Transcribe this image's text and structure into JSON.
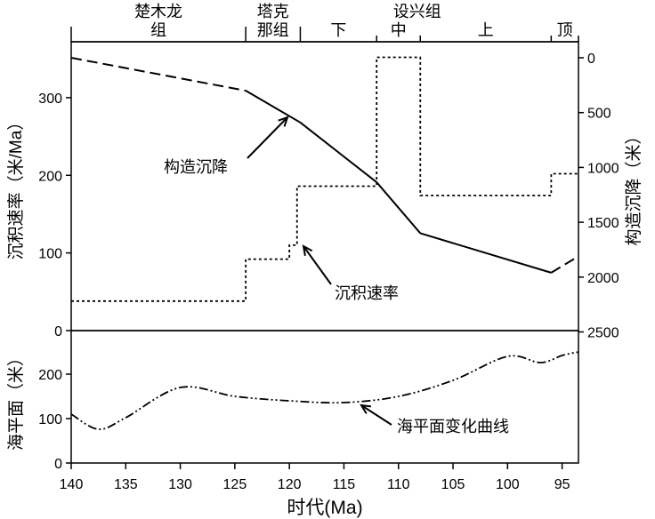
{
  "chart_data": {
    "type": "line",
    "xlabel": "时代(Ma)",
    "xlim": [
      140,
      93.5
    ],
    "xticks": [
      140,
      135,
      130,
      125,
      120,
      115,
      110,
      105,
      100,
      95
    ],
    "strata": {
      "groups": [
        {
          "label_line1": "楚木龙",
          "label_line2": "组",
          "from": 140,
          "to": 124
        },
        {
          "label_line1": "塔克",
          "label_line2": "那组",
          "from": 124,
          "to": 119
        },
        {
          "label_line1": "设兴组",
          "label_line2": "",
          "from": 119,
          "to": 93.5
        }
      ],
      "subunits": [
        {
          "label": "下",
          "from": 119,
          "to": 112
        },
        {
          "label": "中",
          "from": 112,
          "to": 108
        },
        {
          "label": "上",
          "from": 108,
          "to": 96
        },
        {
          "label": "顶",
          "from": 96,
          "to": 93.5
        }
      ]
    },
    "top_panel": {
      "left_ylabel": "沉积速率（米/Ma）",
      "left_ylim": [
        0,
        372
      ],
      "left_yticks": [
        0,
        100,
        200,
        300
      ],
      "right_ylabel": "构造沉降（米）",
      "right_ylim": [
        0,
        2500
      ],
      "right_inverted": true,
      "right_yticks": [
        0,
        500,
        1000,
        1500,
        2000,
        2500
      ],
      "series": [
        {
          "name": "构造沉降",
          "axis": "right",
          "style": "solid-with-dashed-ends",
          "x": [
            140,
            124,
            119,
            112,
            108,
            96,
            93.5
          ],
          "y": [
            0,
            300,
            590,
            1135,
            1600,
            1960,
            1810
          ]
        },
        {
          "name": "沉积速率",
          "axis": "left",
          "style": "dotted-step",
          "steps": [
            {
              "from": 140,
              "to": 124,
              "value": 38
            },
            {
              "from": 124,
              "to": 120,
              "value": 92
            },
            {
              "from": 120,
              "to": 119.3,
              "value": 110
            },
            {
              "from": 119.3,
              "to": 112,
              "value": 186
            },
            {
              "from": 112,
              "to": 108,
              "value": 352
            },
            {
              "from": 108,
              "to": 96,
              "value": 174
            },
            {
              "from": 96,
              "to": 93.5,
              "value": 202
            }
          ]
        }
      ]
    },
    "bottom_panel": {
      "ylabel": "海平面（米）",
      "ylim": [
        0,
        298
      ],
      "yticks": [
        0,
        100,
        200
      ],
      "series": [
        {
          "name": "海平面变化曲线",
          "style": "dash-dot-dot",
          "x": [
            140,
            137.5,
            135,
            130,
            125,
            120,
            115,
            110,
            105,
            100,
            97,
            95,
            93.5
          ],
          "y": [
            110,
            76,
            102,
            170,
            150,
            140,
            136,
            150,
            186,
            240,
            226,
            242,
            250
          ]
        }
      ]
    }
  }
}
